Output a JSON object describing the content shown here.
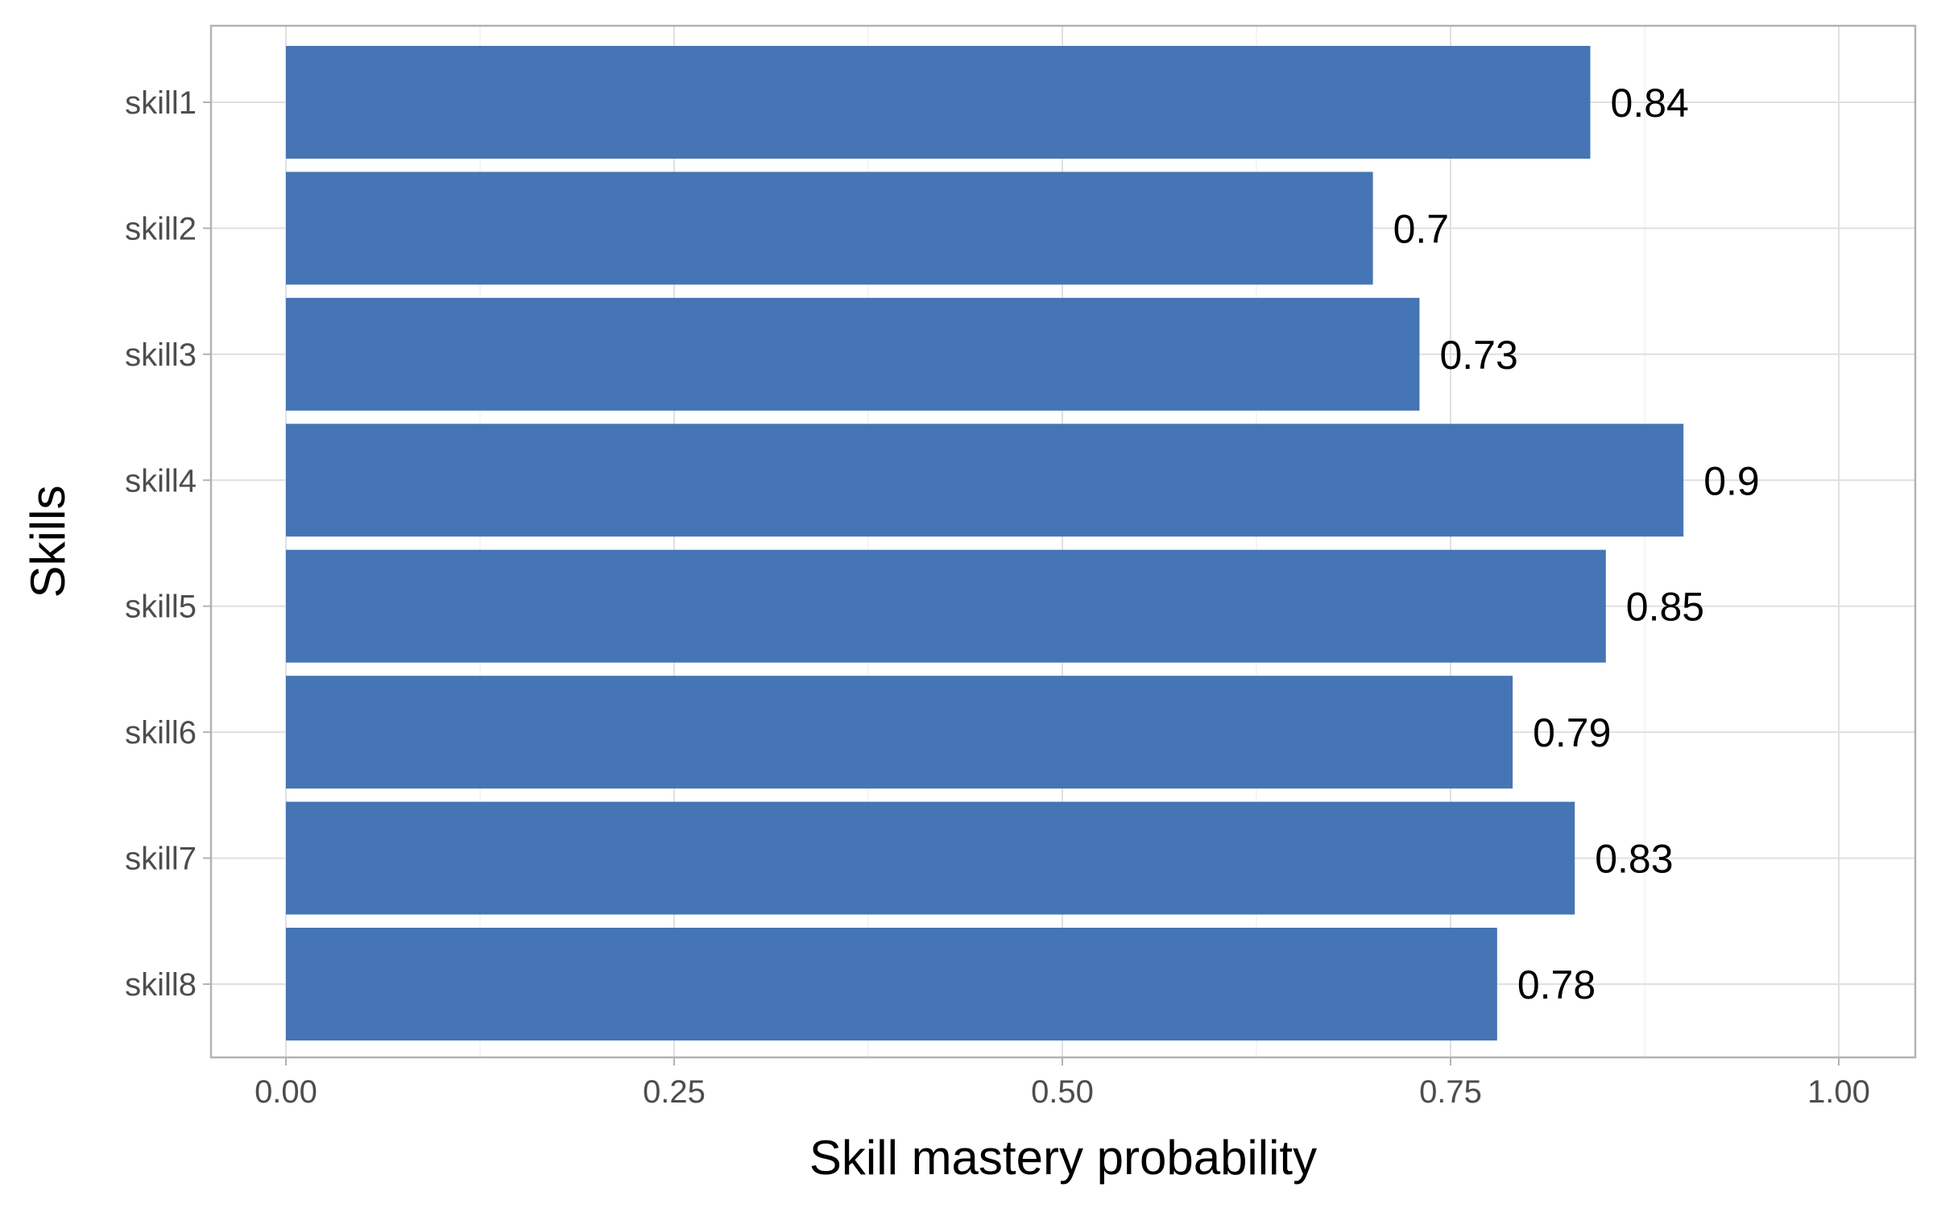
{
  "chart_data": {
    "type": "bar",
    "orientation": "horizontal",
    "categories": [
      "skill1",
      "skill2",
      "skill3",
      "skill4",
      "skill5",
      "skill6",
      "skill7",
      "skill8"
    ],
    "values": [
      0.84,
      0.7,
      0.73,
      0.9,
      0.85,
      0.79,
      0.83,
      0.78
    ],
    "data_labels": [
      "0.84",
      "0.7",
      "0.73",
      "0.9",
      "0.85",
      "0.79",
      "0.83",
      "0.78"
    ],
    "xlabel": "Skill mastery probability",
    "ylabel": "Skills",
    "xlim": [
      0,
      1
    ],
    "x_ticks": [
      0,
      0.25,
      0.5,
      0.75,
      1
    ],
    "x_tick_labels": [
      "0.00",
      "0.25",
      "0.50",
      "0.75",
      "1.00"
    ],
    "bar_color": "#4575B4",
    "grid": true,
    "legend": "none"
  }
}
